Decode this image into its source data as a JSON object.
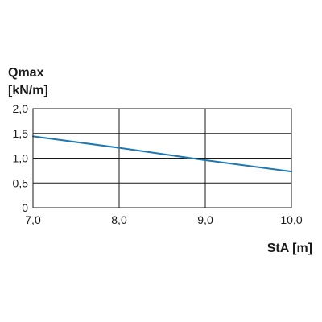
{
  "chart_data": {
    "type": "line",
    "xlabel": "StA [m]",
    "ylabel_lines": [
      "Qmax",
      "[kN/m]"
    ],
    "xlim": [
      7.0,
      10.0
    ],
    "ylim": [
      0,
      2.0
    ],
    "x_ticks": [
      7.0,
      8.0,
      9.0,
      10.0
    ],
    "x_tick_labels": [
      "7,0",
      "8,0",
      "9,0",
      "10,0"
    ],
    "y_ticks": [
      0,
      0.5,
      1.0,
      1.5,
      2.0
    ],
    "y_tick_labels": [
      "0",
      "0,5",
      "1,0",
      "1,5",
      "2,0"
    ],
    "grid": true,
    "series": [
      {
        "x": [
          7.0,
          8.0,
          9.0,
          10.0
        ],
        "values": [
          1.44,
          1.21,
          0.96,
          0.73
        ],
        "color": "#1f78b4"
      }
    ]
  }
}
